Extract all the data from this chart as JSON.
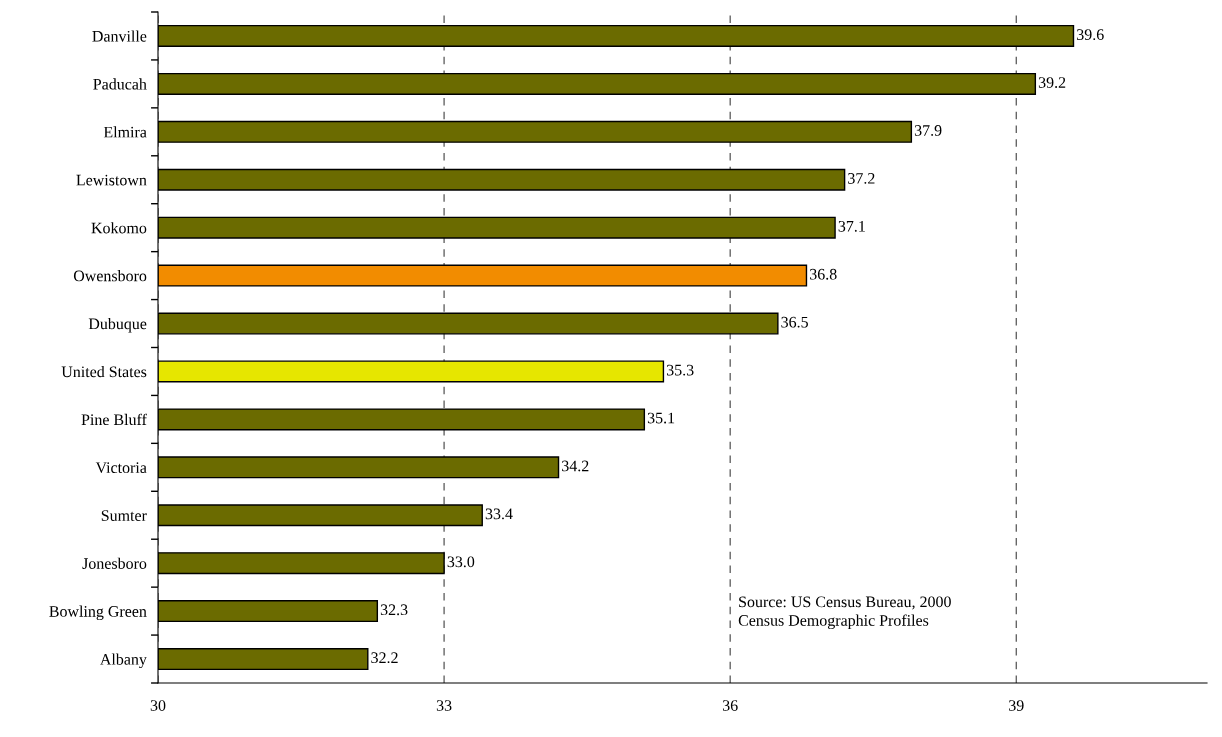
{
  "chart_data": {
    "type": "bar",
    "orientation": "horizontal",
    "categories": [
      "Danville",
      "Paducah",
      "Elmira",
      "Lewistown",
      "Kokomo",
      "Owensboro",
      "Dubuque",
      "United States",
      "Pine Bluff",
      "Victoria",
      "Sumter",
      "Jonesboro",
      "Bowling Green",
      "Albany"
    ],
    "values": [
      39.6,
      39.2,
      37.9,
      37.2,
      37.1,
      36.8,
      36.5,
      35.3,
      35.1,
      34.2,
      33.4,
      33.0,
      32.3,
      32.2
    ],
    "value_labels": [
      "39.6",
      "39.2",
      "37.9",
      "37.2",
      "37.1",
      "36.8",
      "36.5",
      "35.3",
      "35.1",
      "34.2",
      "33.4",
      "33.0",
      "32.3",
      "32.2"
    ],
    "colors": [
      "#6b6b00",
      "#6b6b00",
      "#6b6b00",
      "#6b6b00",
      "#6b6b00",
      "#f28c00",
      "#6b6b00",
      "#e6e600",
      "#6b6b00",
      "#6b6b00",
      "#6b6b00",
      "#6b6b00",
      "#6b6b00",
      "#6b6b00"
    ],
    "xlim": [
      30,
      41
    ],
    "xticks": [
      30,
      33,
      36,
      39
    ],
    "grid": "x",
    "annotations": [
      "Source: US Census Bureau, 2000\nCensus Demographic Profiles"
    ]
  }
}
